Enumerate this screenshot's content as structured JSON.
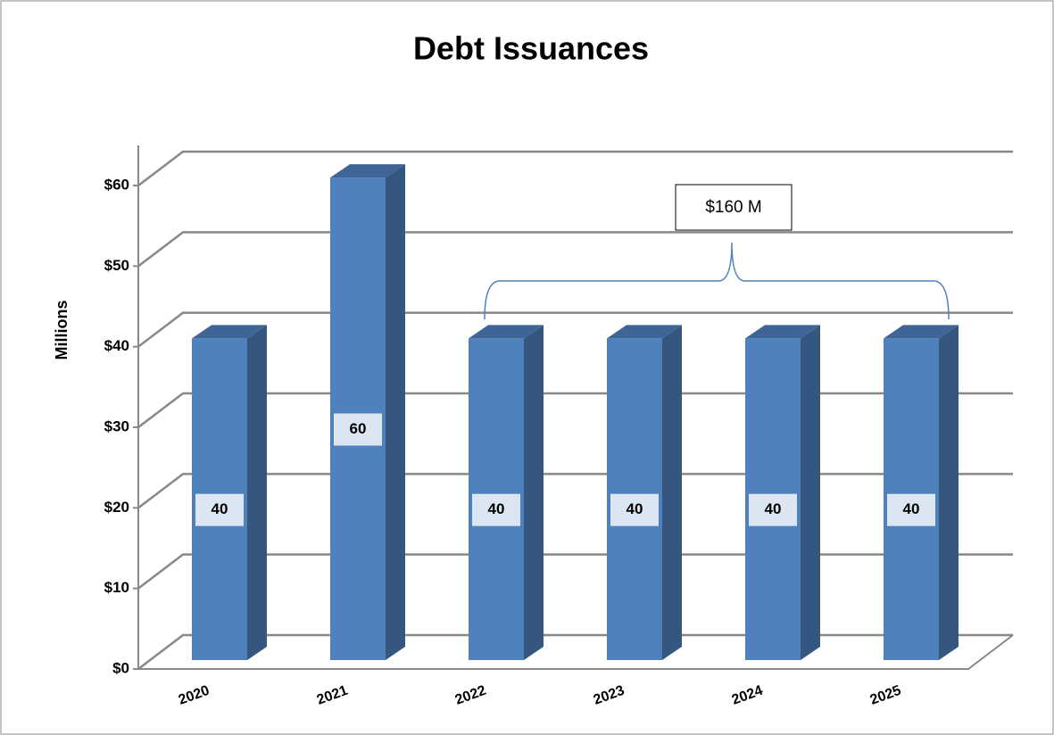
{
  "chart_data": {
    "type": "bar3d",
    "title": "Debt Issuances",
    "y_label": "Millions",
    "categories": [
      "2020",
      "2021",
      "2022",
      "2023",
      "2024",
      "2025"
    ],
    "values": [
      40,
      60,
      40,
      40,
      40,
      40
    ],
    "color": "#4f81bd",
    "ylim": [
      0,
      60
    ],
    "yticks": [
      {
        "value": 0,
        "label": "$0"
      },
      {
        "value": 10,
        "label": "$10"
      },
      {
        "value": 20,
        "label": "$20"
      },
      {
        "value": 30,
        "label": "$30"
      },
      {
        "value": 40,
        "label": "$40"
      },
      {
        "value": 50,
        "label": "$50"
      },
      {
        "value": 60,
        "label": "$60"
      }
    ],
    "grid": true,
    "annotation": "$160 M"
  }
}
